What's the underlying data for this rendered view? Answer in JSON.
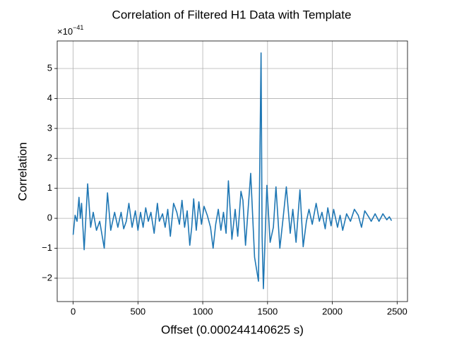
{
  "chart_data": {
    "type": "line",
    "title": "Correlation of Filtered H1 Data with Template",
    "x_label": "Offset (0.000244140625 s)",
    "y_label": "Correlation",
    "y_offset": {
      "base": "×10",
      "exponent": "−41"
    },
    "x": [
      0,
      15,
      30,
      45,
      55,
      65,
      85,
      112,
      135,
      155,
      180,
      205,
      240,
      265,
      290,
      320,
      345,
      370,
      390,
      410,
      430,
      455,
      480,
      500,
      520,
      540,
      560,
      580,
      600,
      625,
      650,
      665,
      690,
      710,
      730,
      750,
      775,
      800,
      820,
      840,
      860,
      880,
      900,
      915,
      930,
      950,
      970,
      990,
      1010,
      1035,
      1060,
      1080,
      1100,
      1120,
      1140,
      1160,
      1180,
      1198,
      1225,
      1250,
      1270,
      1295,
      1310,
      1330,
      1370,
      1400,
      1430,
      1450,
      1458,
      1468,
      1495,
      1520,
      1545,
      1565,
      1595,
      1620,
      1645,
      1675,
      1695,
      1720,
      1750,
      1775,
      1800,
      1820,
      1845,
      1875,
      1900,
      1920,
      1945,
      1965,
      1990,
      2010,
      2040,
      2060,
      2080,
      2110,
      2140,
      2170,
      2200,
      2225,
      2250,
      2280,
      2300,
      2330,
      2360,
      2390,
      2420,
      2440,
      2457
    ],
    "series": [
      {
        "name": "H1",
        "color": "#1f77b4",
        "values": [
          -0.55,
          0.1,
          -0.1,
          0.7,
          0.0,
          0.5,
          -1.05,
          1.15,
          -0.3,
          0.2,
          -0.4,
          -0.1,
          -1.0,
          0.85,
          -0.4,
          0.2,
          -0.3,
          0.2,
          -0.35,
          -0.1,
          0.5,
          -0.3,
          0.25,
          -0.4,
          0.2,
          -0.3,
          0.35,
          -0.1,
          0.2,
          -0.5,
          0.5,
          -0.1,
          0.15,
          -0.3,
          0.3,
          -0.6,
          0.5,
          0.2,
          -0.2,
          0.6,
          -0.3,
          0.25,
          -0.9,
          -0.3,
          0.65,
          -0.4,
          0.55,
          -0.2,
          0.4,
          0.1,
          -0.3,
          -1.0,
          -0.2,
          0.3,
          -0.4,
          0.2,
          -0.5,
          1.25,
          -0.7,
          0.3,
          -0.6,
          0.9,
          0.6,
          -0.9,
          1.5,
          -1.3,
          -2.1,
          5.52,
          -0.6,
          -2.35,
          1.1,
          -0.8,
          -0.3,
          1.05,
          -1.0,
          0.0,
          1.05,
          -0.5,
          0.3,
          -0.8,
          0.95,
          -0.95,
          -0.1,
          0.3,
          -0.2,
          0.5,
          -0.1,
          0.2,
          -0.35,
          0.35,
          -0.25,
          0.3,
          -0.3,
          0.1,
          -0.4,
          0.15,
          -0.1,
          0.3,
          0.1,
          -0.3,
          0.25,
          0.05,
          -0.1,
          0.15,
          -0.1,
          0.15,
          -0.05,
          0.05,
          -0.08
        ]
      }
    ],
    "xlim": [
      -123,
      2580
    ],
    "ylim": [
      -2.78,
      5.92
    ],
    "xticks": [
      0,
      500,
      1000,
      1500,
      2000,
      2500
    ],
    "yticks": [
      {
        "value": -2,
        "label": "−2"
      },
      {
        "value": -1,
        "label": "−1"
      },
      0,
      1,
      2,
      3,
      4,
      5
    ],
    "grid": true
  }
}
